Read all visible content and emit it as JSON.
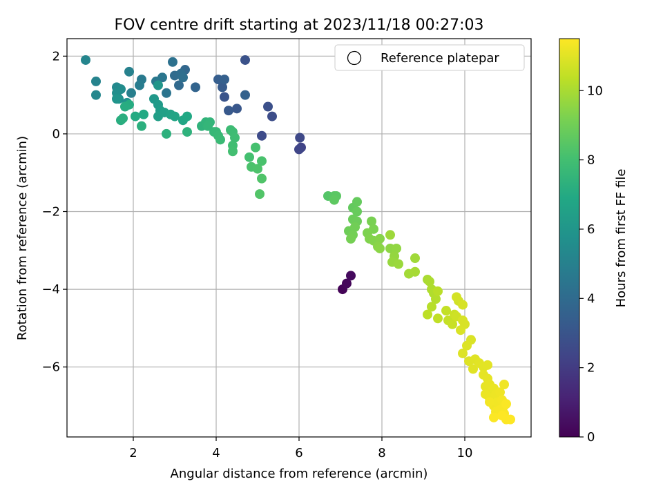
{
  "chart_data": {
    "type": "scatter",
    "title": "FOV centre drift starting at 2023/11/18 00:27:03",
    "xlabel": "Angular distance from reference (arcmin)",
    "ylabel": "Rotation from reference (arcmin)",
    "xlim": [
      0.4,
      11.6
    ],
    "ylim": [
      -7.8,
      2.45
    ],
    "xticks": [
      2,
      4,
      6,
      8,
      10
    ],
    "yticks": [
      -6,
      -4,
      -2,
      0,
      2
    ],
    "grid": true,
    "legend": {
      "position": "top-right",
      "entries": [
        "Reference platepar"
      ]
    },
    "colorbar": {
      "label": "Hours from first FF file",
      "colormap": "viridis",
      "range": [
        0,
        11.5
      ],
      "ticks": [
        0,
        2,
        4,
        6,
        8,
        10
      ]
    },
    "series": [
      {
        "points": [
          [
            7.05,
            -4.0,
            0.1
          ],
          [
            7.15,
            -3.85,
            0.2
          ],
          [
            7.25,
            -3.65,
            0.3
          ],
          [
            6.05,
            -0.35,
            2.3
          ],
          [
            6.0,
            -0.4,
            2.4
          ],
          [
            6.02,
            -0.1,
            2.5
          ],
          [
            5.1,
            -0.05,
            2.6
          ],
          [
            5.35,
            0.45,
            2.7
          ],
          [
            5.25,
            0.7,
            2.8
          ],
          [
            4.7,
            1.9,
            2.9
          ],
          [
            4.2,
            0.95,
            3.0
          ],
          [
            4.5,
            0.65,
            3.1
          ],
          [
            4.3,
            0.6,
            3.2
          ],
          [
            4.15,
            1.2,
            3.3
          ],
          [
            4.05,
            1.4,
            3.4
          ],
          [
            4.2,
            1.4,
            3.5
          ],
          [
            4.7,
            1.0,
            3.6
          ],
          [
            3.5,
            1.2,
            3.7
          ],
          [
            3.25,
            1.65,
            3.8
          ],
          [
            3.1,
            1.25,
            3.9
          ],
          [
            3.0,
            1.5,
            4.0
          ],
          [
            3.15,
            1.55,
            4.1
          ],
          [
            3.2,
            1.45,
            4.2
          ],
          [
            2.95,
            1.85,
            4.3
          ],
          [
            2.8,
            1.05,
            4.4
          ],
          [
            2.7,
            1.45,
            4.5
          ],
          [
            2.55,
            1.35,
            4.6
          ],
          [
            2.2,
            1.4,
            4.7
          ],
          [
            2.15,
            1.25,
            4.8
          ],
          [
            1.95,
            1.05,
            4.9
          ],
          [
            1.9,
            1.6,
            5.0
          ],
          [
            1.1,
            1.35,
            5.1
          ],
          [
            0.85,
            1.9,
            5.2
          ],
          [
            1.1,
            1.0,
            5.3
          ],
          [
            1.6,
            1.2,
            5.4
          ],
          [
            1.7,
            1.15,
            5.5
          ],
          [
            1.6,
            1.05,
            5.6
          ],
          [
            1.65,
            0.9,
            5.7
          ],
          [
            1.85,
            0.8,
            5.8
          ],
          [
            1.6,
            0.9,
            5.9
          ],
          [
            2.6,
            1.25,
            6.0
          ],
          [
            2.5,
            0.9,
            6.1
          ],
          [
            2.6,
            0.75,
            6.2
          ],
          [
            2.65,
            0.6,
            6.3
          ],
          [
            2.6,
            0.45,
            6.4
          ],
          [
            2.75,
            0.55,
            6.5
          ],
          [
            2.9,
            0.5,
            6.6
          ],
          [
            3.0,
            0.45,
            6.7
          ],
          [
            3.2,
            0.35,
            6.8
          ],
          [
            3.3,
            0.45,
            6.9
          ],
          [
            2.25,
            0.5,
            6.95
          ],
          [
            2.05,
            0.45,
            7.0
          ],
          [
            1.9,
            0.75,
            7.05
          ],
          [
            1.8,
            0.7,
            7.1
          ],
          [
            1.7,
            0.35,
            7.15
          ],
          [
            1.75,
            0.4,
            7.2
          ],
          [
            2.2,
            0.2,
            7.25
          ],
          [
            2.8,
            0.0,
            7.3
          ],
          [
            3.3,
            0.05,
            7.35
          ],
          [
            3.65,
            0.2,
            7.4
          ],
          [
            3.75,
            0.3,
            7.45
          ],
          [
            3.85,
            0.3,
            7.5
          ],
          [
            3.8,
            0.2,
            7.55
          ],
          [
            3.95,
            0.05,
            7.6
          ],
          [
            4.0,
            0.05,
            7.65
          ],
          [
            4.05,
            -0.05,
            7.7
          ],
          [
            4.1,
            -0.15,
            7.75
          ],
          [
            4.35,
            0.1,
            7.8
          ],
          [
            4.4,
            0.05,
            7.85
          ],
          [
            4.45,
            -0.1,
            7.9
          ],
          [
            4.4,
            -0.3,
            7.95
          ],
          [
            4.4,
            -0.45,
            8.0
          ],
          [
            4.8,
            -0.6,
            8.05
          ],
          [
            4.95,
            -0.35,
            8.1
          ],
          [
            5.1,
            -0.7,
            8.15
          ],
          [
            4.85,
            -0.85,
            8.2
          ],
          [
            5.0,
            -0.9,
            8.25
          ],
          [
            5.1,
            -1.15,
            8.3
          ],
          [
            5.05,
            -1.55,
            8.35
          ],
          [
            6.7,
            -1.6,
            8.4
          ],
          [
            6.85,
            -1.6,
            8.5
          ],
          [
            6.9,
            -1.6,
            8.55
          ],
          [
            6.85,
            -1.7,
            8.6
          ],
          [
            7.3,
            -1.9,
            8.7
          ],
          [
            7.4,
            -1.75,
            8.75
          ],
          [
            7.4,
            -2.0,
            8.8
          ],
          [
            7.3,
            -2.2,
            8.85
          ],
          [
            7.4,
            -2.25,
            8.9
          ],
          [
            7.2,
            -2.5,
            8.95
          ],
          [
            7.35,
            -2.4,
            9.0
          ],
          [
            7.3,
            -2.6,
            9.05
          ],
          [
            7.25,
            -2.7,
            9.1
          ],
          [
            7.75,
            -2.25,
            9.15
          ],
          [
            7.8,
            -2.45,
            9.2
          ],
          [
            7.65,
            -2.55,
            9.25
          ],
          [
            7.7,
            -2.7,
            9.3
          ],
          [
            7.8,
            -2.75,
            9.35
          ],
          [
            7.95,
            -2.7,
            9.4
          ],
          [
            7.9,
            -2.9,
            9.45
          ],
          [
            7.95,
            -2.95,
            9.5
          ],
          [
            8.2,
            -2.95,
            9.55
          ],
          [
            8.35,
            -2.95,
            9.6
          ],
          [
            8.3,
            -3.15,
            9.65
          ],
          [
            8.25,
            -3.3,
            9.7
          ],
          [
            8.4,
            -3.35,
            9.75
          ],
          [
            8.2,
            -2.6,
            9.8
          ],
          [
            8.8,
            -3.2,
            9.85
          ],
          [
            8.65,
            -3.6,
            9.9
          ],
          [
            8.8,
            -3.55,
            9.95
          ],
          [
            9.1,
            -3.75,
            10.0
          ],
          [
            9.15,
            -3.8,
            10.05
          ],
          [
            9.2,
            -4.0,
            10.1
          ],
          [
            9.25,
            -4.1,
            10.15
          ],
          [
            9.3,
            -4.25,
            10.2
          ],
          [
            9.2,
            -4.45,
            10.25
          ],
          [
            9.35,
            -4.05,
            10.3
          ],
          [
            9.1,
            -4.65,
            10.35
          ],
          [
            9.35,
            -4.75,
            10.4
          ],
          [
            9.55,
            -4.55,
            10.45
          ],
          [
            9.6,
            -4.8,
            10.5
          ],
          [
            9.7,
            -4.9,
            10.55
          ],
          [
            9.75,
            -4.65,
            10.6
          ],
          [
            9.8,
            -4.7,
            10.65
          ],
          [
            9.85,
            -4.3,
            10.7
          ],
          [
            9.8,
            -4.2,
            10.75
          ],
          [
            9.95,
            -4.4,
            10.8
          ],
          [
            9.95,
            -4.8,
            10.82
          ],
          [
            10.0,
            -4.9,
            10.84
          ],
          [
            9.9,
            -5.05,
            10.86
          ],
          [
            10.15,
            -5.3,
            10.88
          ],
          [
            10.05,
            -5.45,
            10.9
          ],
          [
            9.95,
            -5.65,
            10.92
          ],
          [
            10.1,
            -5.85,
            10.94
          ],
          [
            10.25,
            -5.8,
            10.96
          ],
          [
            10.2,
            -6.05,
            10.98
          ],
          [
            10.35,
            -5.9,
            11.0
          ],
          [
            10.45,
            -6.0,
            11.02
          ],
          [
            10.55,
            -5.95,
            11.04
          ],
          [
            10.45,
            -6.2,
            11.06
          ],
          [
            10.55,
            -6.3,
            11.08
          ],
          [
            10.5,
            -6.5,
            11.1
          ],
          [
            10.6,
            -6.45,
            11.12
          ],
          [
            10.65,
            -6.6,
            11.14
          ],
          [
            10.7,
            -6.55,
            11.16
          ],
          [
            10.5,
            -6.7,
            11.18
          ],
          [
            10.6,
            -6.8,
            11.2
          ],
          [
            10.75,
            -6.7,
            11.22
          ],
          [
            10.85,
            -6.65,
            11.24
          ],
          [
            10.95,
            -6.45,
            11.26
          ],
          [
            10.7,
            -7.0,
            11.28
          ],
          [
            10.8,
            -6.9,
            11.3
          ],
          [
            10.6,
            -6.9,
            11.32
          ],
          [
            10.9,
            -6.85,
            11.34
          ],
          [
            10.95,
            -7.0,
            11.36
          ],
          [
            10.75,
            -7.15,
            11.38
          ],
          [
            10.85,
            -7.1,
            11.4
          ],
          [
            10.95,
            -7.2,
            11.42
          ],
          [
            11.0,
            -6.95,
            11.44
          ],
          [
            10.7,
            -7.3,
            11.46
          ],
          [
            11.0,
            -7.35,
            11.48
          ],
          [
            11.1,
            -7.35,
            11.5
          ],
          [
            10.9,
            -7.25,
            11.5
          ]
        ]
      }
    ]
  }
}
